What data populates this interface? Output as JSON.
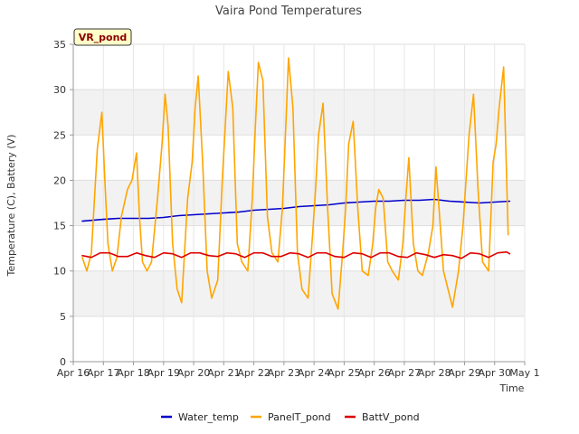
{
  "chart_data": {
    "type": "line",
    "title": "Vaira Pond Temperatures",
    "xlabel": "Time",
    "ylabel": "Temperature (C), Battery (V)",
    "badge": "VR_pond",
    "ylim": [
      0,
      35
    ],
    "yticks": [
      0,
      5,
      10,
      15,
      20,
      25,
      30,
      35
    ],
    "xlim": [
      16,
      31
    ],
    "xtick_values": [
      16,
      17,
      18,
      19,
      20,
      21,
      22,
      23,
      24,
      25,
      26,
      27,
      28,
      29,
      30,
      31
    ],
    "xtick_labels": [
      "Apr 16",
      "Apr 17",
      "Apr 18",
      "Apr 19",
      "Apr 20",
      "Apr 21",
      "Apr 22",
      "Apr 23",
      "Apr 24",
      "Apr 25",
      "Apr 26",
      "Apr 27",
      "Apr 28",
      "Apr 29",
      "Apr 30",
      "May 1"
    ],
    "grid": true,
    "legend_position": "bottom",
    "series": [
      {
        "name": "Water_temp",
        "color": "#0000cc",
        "x": [
          16.3,
          17.0,
          17.5,
          18.0,
          18.5,
          19.0,
          19.5,
          20.0,
          20.5,
          21.0,
          21.5,
          22.0,
          22.5,
          23.0,
          23.5,
          24.0,
          24.5,
          25.0,
          25.5,
          26.0,
          26.5,
          27.0,
          27.5,
          28.0,
          28.5,
          29.0,
          29.5,
          30.0,
          30.5
        ],
        "y": [
          15.5,
          15.7,
          15.8,
          15.8,
          15.8,
          15.9,
          16.1,
          16.2,
          16.3,
          16.4,
          16.5,
          16.7,
          16.8,
          16.9,
          17.1,
          17.2,
          17.3,
          17.5,
          17.6,
          17.7,
          17.7,
          17.8,
          17.8,
          17.9,
          17.7,
          17.6,
          17.5,
          17.6,
          17.7
        ]
      },
      {
        "name": "PanelT_pond",
        "color": "#ffa500",
        "x": [
          16.3,
          16.45,
          16.6,
          16.8,
          16.95,
          17.05,
          17.15,
          17.3,
          17.45,
          17.6,
          17.8,
          17.95,
          18.1,
          18.2,
          18.3,
          18.45,
          18.6,
          18.8,
          18.95,
          19.05,
          19.15,
          19.3,
          19.45,
          19.6,
          19.8,
          19.95,
          20.05,
          20.15,
          20.3,
          20.45,
          20.6,
          20.8,
          20.95,
          21.05,
          21.15,
          21.3,
          21.45,
          21.6,
          21.8,
          21.95,
          22.05,
          22.15,
          22.3,
          22.45,
          22.6,
          22.8,
          22.95,
          23.05,
          23.15,
          23.3,
          23.45,
          23.6,
          23.8,
          23.95,
          24.05,
          24.15,
          24.3,
          24.45,
          24.6,
          24.8,
          24.95,
          25.05,
          25.15,
          25.3,
          25.45,
          25.6,
          25.8,
          25.95,
          26.05,
          26.15,
          26.3,
          26.45,
          26.6,
          26.8,
          26.95,
          27.05,
          27.15,
          27.3,
          27.45,
          27.6,
          27.8,
          27.95,
          28.05,
          28.15,
          28.3,
          28.45,
          28.6,
          28.8,
          28.95,
          29.05,
          29.15,
          29.3,
          29.45,
          29.6,
          29.8,
          29.95,
          30.05,
          30.15,
          30.3,
          30.45
        ],
        "y": [
          11.5,
          10.0,
          12.0,
          23.5,
          27.5,
          20.0,
          13.0,
          10.0,
          11.5,
          16.0,
          19.0,
          20.0,
          23.0,
          16.0,
          11.0,
          10.0,
          11.0,
          18.0,
          24.0,
          29.5,
          26.0,
          13.0,
          8.0,
          6.5,
          18.0,
          22.0,
          28.0,
          31.5,
          22.0,
          10.0,
          7.0,
          9.0,
          20.0,
          26.0,
          32.0,
          28.0,
          13.0,
          11.0,
          10.0,
          18.0,
          26.0,
          33.0,
          31.0,
          16.0,
          12.0,
          11.0,
          17.0,
          25.0,
          33.5,
          28.0,
          12.0,
          8.0,
          7.0,
          14.0,
          19.0,
          25.0,
          28.5,
          17.0,
          7.5,
          5.8,
          12.0,
          17.0,
          24.0,
          26.5,
          17.0,
          10.0,
          9.5,
          13.0,
          17.0,
          19.0,
          18.0,
          11.0,
          10.0,
          9.0,
          13.0,
          18.0,
          22.5,
          13.0,
          10.0,
          9.5,
          12.0,
          15.0,
          21.5,
          17.0,
          10.0,
          8.0,
          6.0,
          10.0,
          15.0,
          20.0,
          25.0,
          29.5,
          19.0,
          11.0,
          10.0,
          22.0,
          24.0,
          28.0,
          32.5,
          14.0
        ]
      },
      {
        "name": "BattV_pond",
        "color": "#dd0000",
        "x": [
          16.3,
          16.6,
          16.9,
          17.2,
          17.5,
          17.8,
          18.1,
          18.4,
          18.7,
          19.0,
          19.3,
          19.6,
          19.9,
          20.2,
          20.5,
          20.8,
          21.1,
          21.4,
          21.7,
          22.0,
          22.3,
          22.6,
          22.9,
          23.2,
          23.5,
          23.8,
          24.1,
          24.4,
          24.7,
          25.0,
          25.3,
          25.6,
          25.9,
          26.2,
          26.5,
          26.8,
          27.1,
          27.4,
          27.7,
          28.0,
          28.3,
          28.6,
          28.9,
          29.2,
          29.5,
          29.8,
          30.1,
          30.4,
          30.5
        ],
        "y": [
          11.7,
          11.5,
          12.0,
          12.0,
          11.6,
          11.6,
          12.0,
          11.7,
          11.5,
          12.0,
          11.9,
          11.5,
          12.0,
          12.0,
          11.7,
          11.6,
          12.0,
          11.9,
          11.5,
          12.0,
          12.0,
          11.6,
          11.6,
          12.0,
          11.9,
          11.5,
          12.0,
          12.0,
          11.6,
          11.5,
          12.0,
          11.9,
          11.5,
          12.0,
          12.0,
          11.6,
          11.5,
          12.0,
          11.8,
          11.5,
          11.8,
          11.7,
          11.4,
          12.0,
          11.9,
          11.5,
          12.0,
          12.1,
          11.9
        ]
      }
    ]
  }
}
